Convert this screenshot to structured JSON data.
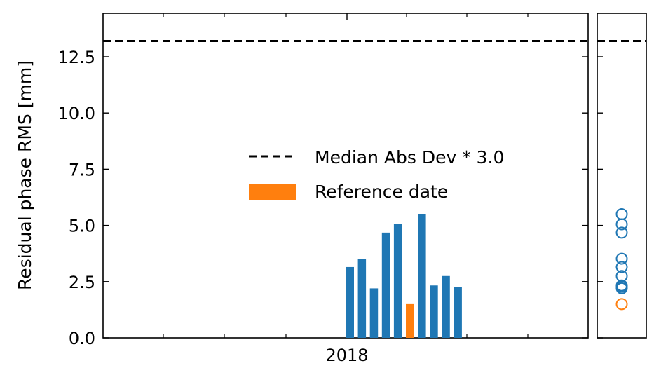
{
  "chart_data": {
    "type": "bar",
    "ylabel": "Residual phase RMS [mm]",
    "ylim": [
      0,
      14.3
    ],
    "yticks": [
      "0.0",
      "2.5",
      "5.0",
      "7.5",
      "10.0",
      "12.5"
    ],
    "ytick_values": [
      0,
      2.5,
      5.0,
      7.5,
      10.0,
      12.5
    ],
    "xtick_label": "2018",
    "legend_position": "center-right",
    "threshold": {
      "name": "Median Abs Dev * 3.0",
      "value": 13.2,
      "style": "dashed",
      "color": "#000000"
    },
    "bars": [
      {
        "value": 3.15,
        "reference": false
      },
      {
        "value": 3.52,
        "reference": false
      },
      {
        "value": 2.2,
        "reference": false
      },
      {
        "value": 4.68,
        "reference": false
      },
      {
        "value": 5.05,
        "reference": false
      },
      {
        "value": 1.5,
        "reference": true
      },
      {
        "value": 5.5,
        "reference": false
      },
      {
        "value": 2.33,
        "reference": false
      },
      {
        "value": 2.75,
        "reference": false
      },
      {
        "value": 2.27,
        "reference": false
      }
    ],
    "legend": [
      {
        "label": "Median Abs Dev * 3.0",
        "kind": "dashed-line"
      },
      {
        "label": "Reference date",
        "kind": "patch"
      }
    ],
    "side_panel": {
      "type": "scatter",
      "marker": "open-circle",
      "points": [
        5.5,
        5.05,
        4.68,
        3.52,
        3.15,
        2.75,
        2.33,
        2.27,
        2.2,
        1.5
      ],
      "reference_point": 1.5
    },
    "colors": {
      "bar": "#1f77b4",
      "reference": "#ff7f0e",
      "threshold": "#000000"
    }
  }
}
